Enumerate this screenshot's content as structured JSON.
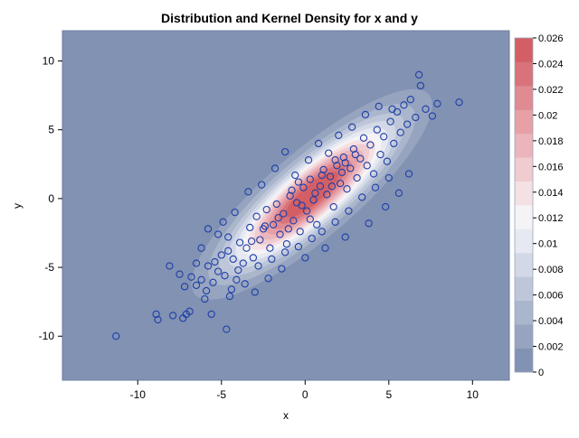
{
  "chart_data": {
    "type": "scatter",
    "overlay": "kernel-density-contour",
    "title": "Distribution and Kernel Density for x and y",
    "xlabel": "x",
    "ylabel": "y",
    "xlim": [
      -14.5,
      12.2
    ],
    "ylim": [
      -13.2,
      12.2
    ],
    "x_ticks": [
      -10,
      -5,
      0,
      5,
      10
    ],
    "y_ticks": [
      -10,
      -5,
      0,
      5,
      10
    ],
    "x_tick_labels": [
      "-10",
      "-5",
      "0",
      "5",
      "10"
    ],
    "y_tick_labels": [
      "-10",
      "-5",
      "0",
      "5",
      "10"
    ],
    "grid": false,
    "legend_placement": "right",
    "colorbar": {
      "min": 0,
      "max": 0.026,
      "step": 0.002,
      "labels": [
        "0",
        "0.002",
        "0.004",
        "0.006",
        "0.008",
        "0.01",
        "0.012",
        "0.014",
        "0.016",
        "0.018",
        "0.02",
        "0.022",
        "0.024",
        "0.026"
      ],
      "colors": [
        "#8292b3",
        "#96a4bf",
        "#aab6cc",
        "#bec7d9",
        "#d2d8e6",
        "#e6e9f2",
        "#f5f3f5",
        "#f5e1e4",
        "#f0cbd0",
        "#ebb5bb",
        "#e6a0a6",
        "#e08a91",
        "#d9737a",
        "#d35f65"
      ]
    },
    "density": {
      "mean": [
        0.4,
        0.3
      ],
      "sd": [
        3.1,
        3.3
      ],
      "correlation": 0.85
    },
    "marker_color": "#1f3fa8",
    "points": [
      [
        -11.3,
        -10.0
      ],
      [
        -8.9,
        -8.4
      ],
      [
        -8.8,
        -8.8
      ],
      [
        -8.1,
        -4.9
      ],
      [
        -7.9,
        -8.5
      ],
      [
        -7.3,
        -8.7
      ],
      [
        -7.1,
        -8.4
      ],
      [
        -6.9,
        -8.2
      ],
      [
        -7.2,
        -6.4
      ],
      [
        -6.8,
        -5.7
      ],
      [
        -6.5,
        -6.3
      ],
      [
        -6.2,
        -5.9
      ],
      [
        -5.9,
        -6.7
      ],
      [
        -5.6,
        -8.4
      ],
      [
        -4.7,
        -9.5
      ],
      [
        -4.5,
        -7.1
      ],
      [
        -5.8,
        -4.9
      ],
      [
        -5.4,
        -4.6
      ],
      [
        -5.2,
        -5.3
      ],
      [
        -5.0,
        -4.1
      ],
      [
        -4.8,
        -5.6
      ],
      [
        -4.6,
        -3.8
      ],
      [
        -4.3,
        -4.4
      ],
      [
        -4.1,
        -5.9
      ],
      [
        -3.9,
        -3.2
      ],
      [
        -5.8,
        -2.2
      ],
      [
        -4.9,
        -1.7
      ],
      [
        -4.6,
        -2.8
      ],
      [
        -3.7,
        -4.7
      ],
      [
        -3.5,
        -3.6
      ],
      [
        -3.3,
        -2.1
      ],
      [
        -3.1,
        -4.3
      ],
      [
        -2.9,
        -1.3
      ],
      [
        -2.7,
        -3.0
      ],
      [
        -2.5,
        -2.2
      ],
      [
        -2.3,
        -0.8
      ],
      [
        -2.1,
        -3.6
      ],
      [
        -1.9,
        -1.9
      ],
      [
        -1.7,
        -0.4
      ],
      [
        -1.5,
        -2.6
      ],
      [
        -1.3,
        -1.1
      ],
      [
        -1.1,
        -3.3
      ],
      [
        -0.9,
        0.2
      ],
      [
        -0.7,
        -1.6
      ],
      [
        -0.5,
        -0.3
      ],
      [
        -0.3,
        -2.4
      ],
      [
        -0.1,
        0.8
      ],
      [
        0.1,
        -0.9
      ],
      [
        0.3,
        1.4
      ],
      [
        0.5,
        -0.1
      ],
      [
        0.7,
        -1.9
      ],
      [
        0.9,
        0.9
      ],
      [
        1.1,
        2.1
      ],
      [
        1.3,
        0.3
      ],
      [
        1.5,
        1.6
      ],
      [
        1.7,
        -0.6
      ],
      [
        1.9,
        2.4
      ],
      [
        2.1,
        1.1
      ],
      [
        2.3,
        3.0
      ],
      [
        2.5,
        0.7
      ],
      [
        2.7,
        2.2
      ],
      [
        2.9,
        3.6
      ],
      [
        3.1,
        1.5
      ],
      [
        3.3,
        2.9
      ],
      [
        3.5,
        4.4
      ],
      [
        3.7,
        2.4
      ],
      [
        3.9,
        3.9
      ],
      [
        4.1,
        1.8
      ],
      [
        4.3,
        5.0
      ],
      [
        4.5,
        3.2
      ],
      [
        4.7,
        4.5
      ],
      [
        4.9,
        2.7
      ],
      [
        5.1,
        5.6
      ],
      [
        5.3,
        4.0
      ],
      [
        5.5,
        6.3
      ],
      [
        5.7,
        4.8
      ],
      [
        5.9,
        6.8
      ],
      [
        6.1,
        5.4
      ],
      [
        6.3,
        7.2
      ],
      [
        6.6,
        5.9
      ],
      [
        6.8,
        9.0
      ],
      [
        6.9,
        8.2
      ],
      [
        7.2,
        6.5
      ],
      [
        7.6,
        6.0
      ],
      [
        7.9,
        6.9
      ],
      [
        9.2,
        7.0
      ],
      [
        -6.0,
        -7.3
      ],
      [
        -5.5,
        -6.1
      ],
      [
        -4.4,
        -6.6
      ],
      [
        -4.0,
        -5.2
      ],
      [
        -3.6,
        -6.2
      ],
      [
        -2.8,
        -4.9
      ],
      [
        -2.0,
        -4.4
      ],
      [
        -1.2,
        -3.9
      ],
      [
        -0.4,
        -3.5
      ],
      [
        0.4,
        -2.9
      ],
      [
        1.0,
        -2.4
      ],
      [
        1.8,
        -1.7
      ],
      [
        2.6,
        -0.9
      ],
      [
        3.4,
        0.1
      ],
      [
        4.2,
        0.8
      ],
      [
        5.0,
        1.5
      ],
      [
        -1.8,
        2.2
      ],
      [
        -1.2,
        3.4
      ],
      [
        -0.6,
        1.7
      ],
      [
        0.2,
        2.8
      ],
      [
        0.8,
        4.0
      ],
      [
        1.4,
        3.3
      ],
      [
        2.0,
        4.6
      ],
      [
        2.8,
        5.2
      ],
      [
        3.6,
        6.1
      ],
      [
        4.4,
        6.7
      ],
      [
        5.2,
        6.5
      ],
      [
        -3.4,
        0.5
      ],
      [
        -2.6,
        1.0
      ],
      [
        -4.2,
        -1.0
      ],
      [
        -5.2,
        -2.6
      ],
      [
        -6.2,
        -3.6
      ],
      [
        -6.5,
        -4.7
      ],
      [
        -7.5,
        -5.5
      ],
      [
        -3.0,
        -6.8
      ],
      [
        -2.2,
        -5.8
      ],
      [
        -1.4,
        -5.1
      ],
      [
        0.0,
        -4.3
      ],
      [
        1.2,
        -3.6
      ],
      [
        2.4,
        -2.8
      ],
      [
        3.8,
        -1.8
      ],
      [
        4.8,
        -0.6
      ],
      [
        5.6,
        0.4
      ],
      [
        6.2,
        1.8
      ],
      [
        -0.8,
        0.6
      ],
      [
        -0.2,
        -0.5
      ],
      [
        0.6,
        0.4
      ],
      [
        1.6,
        0.9
      ],
      [
        2.2,
        1.9
      ],
      [
        -1.6,
        -1.4
      ],
      [
        -2.4,
        -2.0
      ],
      [
        -3.2,
        -3.1
      ],
      [
        1.0,
        1.7
      ],
      [
        1.8,
        2.8
      ],
      [
        2.4,
        2.6
      ],
      [
        3.0,
        3.2
      ],
      [
        -0.4,
        1.2
      ],
      [
        0.3,
        -1.5
      ],
      [
        -1.0,
        -2.2
      ]
    ]
  }
}
